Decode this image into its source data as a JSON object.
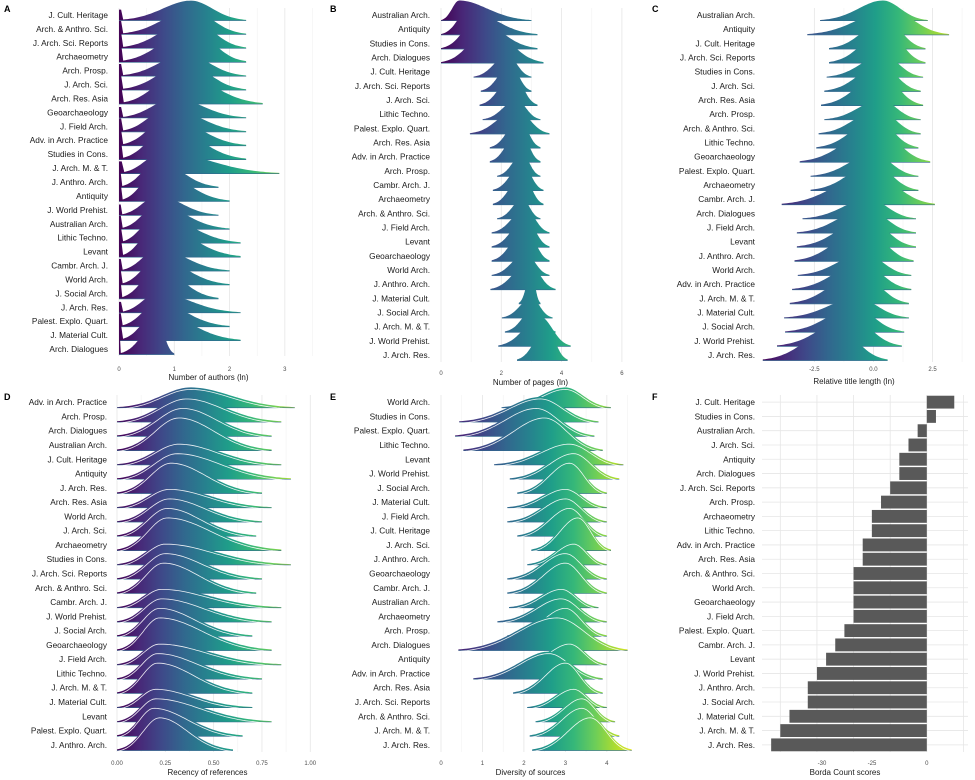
{
  "colors": {
    "viridis": [
      "#440154",
      "#482878",
      "#3e4989",
      "#31688e",
      "#26828e",
      "#1f9e89",
      "#35b779",
      "#6ece58",
      "#b5de2b",
      "#fde725"
    ],
    "bar": "#595959",
    "grid": "#e6e6e6",
    "median_line": "#ffffff"
  },
  "chart_data": [
    {
      "panel": "A",
      "type": "ridgeline",
      "xlabel": "Number of authors (ln)",
      "xticks": [
        "0",
        "1",
        "2",
        "3"
      ],
      "xlim": [
        0,
        3.6
      ],
      "categories": [
        "J. Cult. Heritage",
        "Arch. & Anthro. Sci.",
        "J. Arch. Sci. Reports",
        "Archaeometry",
        "Arch. Prosp.",
        "J. Arch. Sci.",
        "Arch. Res. Asia",
        "Geoarchaeology",
        "J. Field Arch.",
        "Adv. in Arch. Practice",
        "Studies in Cons.",
        "J. Arch. M. & T.",
        "J. Anthro. Arch.",
        "Antiquity",
        "J. World Prehist.",
        "Australian Arch.",
        "Lithic Techno.",
        "Levant",
        "Cambr. Arch. J.",
        "World Arch.",
        "J. Social Arch.",
        "J. Arch. Res.",
        "Palest. Explo. Quart.",
        "J. Material Cult.",
        "Arch. Dialogues"
      ],
      "peak": [
        1.3,
        1.3,
        1.3,
        1.3,
        1.2,
        1.2,
        1.1,
        1.0,
        0.9,
        0.9,
        0.9,
        0.8,
        0.7,
        0.7,
        0.7,
        0.7,
        0.7,
        0.7,
        0.7,
        0.7,
        0.7,
        0.7,
        0.7,
        0.7,
        0.7
      ],
      "xmax": [
        2.3,
        2.3,
        2.3,
        2.3,
        2.3,
        2.3,
        2.6,
        2.3,
        2.3,
        2.3,
        2.3,
        2.9,
        1.8,
        2.0,
        1.8,
        2.0,
        2.2,
        2.2,
        2.0,
        2.0,
        1.8,
        2.2,
        2.0,
        2.2,
        1.0
      ],
      "zero_spike": true
    },
    {
      "panel": "B",
      "type": "ridgeline",
      "xlabel": "Number of pages (ln)",
      "xticks": [
        "0",
        "2",
        "4",
        "6"
      ],
      "xlim": [
        0,
        6.6
      ],
      "categories": [
        "Australian Arch.",
        "Antiquity",
        "Studies in Cons.",
        "Arch. Dialogues",
        "J. Cult. Heritage",
        "J. Arch. Sci. Reports",
        "J. Arch. Sci.",
        "Lithic Techno.",
        "Palest. Explo. Quart.",
        "Arch. Res. Asia",
        "Adv. in Arch. Practice",
        "Arch. Prosp.",
        "Cambr. Arch. J.",
        "Archaeometry",
        "Arch. & Anthro. Sci.",
        "J. Field Arch.",
        "Levant",
        "Geoarchaeology",
        "World Arch.",
        "J. Anthro. Arch.",
        "J. Material Cult.",
        "J. Social Arch.",
        "J. Arch. M. & T.",
        "J. World Prehist.",
        "J. Arch. Res."
      ],
      "peak": [
        0.6,
        0.9,
        1.2,
        1.6,
        2.2,
        2.3,
        2.4,
        2.5,
        2.5,
        2.6,
        2.6,
        2.7,
        2.7,
        2.7,
        2.7,
        2.8,
        2.8,
        2.8,
        2.8,
        2.9,
        3.0,
        3.0,
        3.1,
        3.3,
        3.5
      ],
      "xmax": [
        3.0,
        3.2,
        3.2,
        3.4,
        3.0,
        3.0,
        3.2,
        3.3,
        3.6,
        3.3,
        3.3,
        3.3,
        3.4,
        3.4,
        3.3,
        3.6,
        3.6,
        3.6,
        3.6,
        3.8,
        3.3,
        3.7,
        3.8,
        4.3,
        4.2
      ],
      "zero_spike": false
    },
    {
      "panel": "C",
      "type": "ridgeline",
      "xlabel": "Relative title length (ln)",
      "xticks": [
        "-2.5",
        "0.0",
        "2.5"
      ],
      "xlim": [
        -4.8,
        4.0
      ],
      "categories": [
        "Australian Arch.",
        "Antiquity",
        "J. Cult. Heritage",
        "J. Arch. Sci. Reports",
        "Studies in Cons.",
        "J. Arch. Sci.",
        "Arch. Res. Asia",
        "Arch. Prosp.",
        "Arch. & Anthro. Sci.",
        "Lithic Techno.",
        "Geoarchaeology",
        "Palest. Explo. Quart.",
        "Archaeometry",
        "Cambr. Arch. J.",
        "Arch. Dialogues",
        "J. Field Arch.",
        "Levant",
        "J. Anthro. Arch.",
        "World Arch.",
        "Adv. in Arch. Practice",
        "J. Arch. M. & T.",
        "J. Material Cult.",
        "J. Social Arch.",
        "J. World Prehist.",
        "J. Arch. Res."
      ],
      "peak": [
        0.4,
        0.7,
        0.5,
        0.5,
        0.4,
        0.3,
        0.3,
        0.3,
        0.2,
        0.1,
        0.1,
        0.0,
        0.0,
        -0.1,
        -0.2,
        -0.3,
        -0.3,
        -0.4,
        -0.4,
        -0.5,
        -0.6,
        -0.7,
        -0.8,
        -1.0,
        -1.6
      ],
      "xmax": [
        2.3,
        3.2,
        2.2,
        2.2,
        2.1,
        2.0,
        2.1,
        2.0,
        2.0,
        1.9,
        2.4,
        1.9,
        1.9,
        2.6,
        1.8,
        1.8,
        1.8,
        1.7,
        1.6,
        1.6,
        1.5,
        1.5,
        1.3,
        1.2,
        0.6
      ],
      "zero_spike": false
    },
    {
      "panel": "D",
      "type": "ridgeline",
      "xlabel": "Recency of references",
      "xticks": [
        "0.00",
        "0.25",
        "0.50",
        "0.75",
        "1.00"
      ],
      "xlim": [
        0,
        1.04
      ],
      "categories": [
        "Adv. in Arch. Practice",
        "Arch. Prosp.",
        "Arch. Dialogues",
        "Australian Arch.",
        "J. Cult. Heritage",
        "Antiquity",
        "J. Arch. Res.",
        "Arch. Res. Asia",
        "World Arch.",
        "J. Arch. Sci.",
        "Archaeometry",
        "Studies in Cons.",
        "J. Arch. Sci. Reports",
        "Arch. & Anthro. Sci.",
        "Cambr. Arch. J.",
        "J. World Prehist.",
        "J. Social Arch.",
        "Geoarchaeology",
        "J. Field Arch.",
        "Lithic Techno.",
        "J. Arch. M. & T.",
        "J. Material Cult.",
        "Levant",
        "Palest. Explo. Quart.",
        "J. Anthro. Arch."
      ],
      "peak": [
        0.38,
        0.36,
        0.34,
        0.32,
        0.32,
        0.31,
        0.28,
        0.27,
        0.27,
        0.26,
        0.26,
        0.25,
        0.25,
        0.24,
        0.23,
        0.23,
        0.22,
        0.22,
        0.22,
        0.21,
        0.21,
        0.2,
        0.2,
        0.19,
        0.22
      ],
      "xmax": [
        0.92,
        0.85,
        0.8,
        0.8,
        0.85,
        0.9,
        0.75,
        0.8,
        0.75,
        0.72,
        0.85,
        0.9,
        0.75,
        0.72,
        0.85,
        0.8,
        0.7,
        0.8,
        0.85,
        0.75,
        0.7,
        0.7,
        0.8,
        0.65,
        0.6
      ],
      "zero_spike": false
    },
    {
      "panel": "E",
      "type": "ridgeline",
      "xlabel": "Diversity of sources",
      "xticks": [
        "0",
        "1",
        "2",
        "3",
        "4"
      ],
      "xlim": [
        0,
        4.8
      ],
      "categories": [
        "World Arch.",
        "Studies in Cons.",
        "Palest. Explo. Quart.",
        "Lithic Techno.",
        "Levant",
        "J. World Prehist.",
        "J. Social Arch.",
        "J. Material Cult.",
        "J. Field Arch.",
        "J. Cult. Heritage",
        "J. Arch. Sci.",
        "J. Anthro. Arch.",
        "Geoarchaeology",
        "Cambr. Arch. J.",
        "Australian Arch.",
        "Archaeometry",
        "Arch. Prosp.",
        "Arch. Dialogues",
        "Antiquity",
        "Adv. in Arch. Practice",
        "Arch. Res. Asia",
        "J. Arch. Sci. Reports",
        "Arch. & Anthro. Sci.",
        "J. Arch. M. & T.",
        "J. Arch. Res."
      ],
      "peak": [
        3.0,
        2.4,
        2.3,
        2.5,
        3.1,
        3.2,
        3.1,
        3.0,
        3.0,
        3.1,
        3.3,
        3.2,
        3.0,
        3.0,
        2.9,
        2.9,
        3.0,
        2.8,
        3.1,
        2.6,
        3.0,
        3.2,
        3.4,
        3.4,
        3.6
      ],
      "xmax": [
        4.1,
        3.8,
        3.7,
        3.9,
        4.4,
        4.3,
        4.0,
        4.0,
        4.0,
        4.0,
        4.1,
        4.0,
        4.0,
        4.0,
        3.8,
        4.0,
        4.0,
        4.5,
        4.0,
        3.9,
        3.9,
        4.0,
        4.2,
        4.3,
        4.6
      ],
      "zero_spike": false
    },
    {
      "panel": "F",
      "type": "bar",
      "xlabel": "Borda Count scores",
      "xticks": [
        "-30",
        "-25",
        "0"
      ],
      "categories": [
        "J. Cult. Heritage",
        "Studies in Cons.",
        "Australian Arch.",
        "J. Arch. Sci.",
        "Antiquity",
        "Arch. Dialogues",
        "J. Arch. Sci. Reports",
        "Arch. Prosp.",
        "Archaeometry",
        "Lithic Techno.",
        "Adv. in Arch. Practice",
        "Arch. Res. Asia",
        "Arch. & Anthro. Sci.",
        "World Arch.",
        "Geoarchaeology",
        "J. Field Arch.",
        "Palest. Explo. Quart.",
        "Cambr. Arch. J.",
        "Levant",
        "J. World Prehist.",
        "J. Anthro. Arch.",
        "J. Social Arch.",
        "J. Material Cult.",
        "J. Arch. M. & T.",
        "J. Arch. Res."
      ],
      "values": [
        3,
        1,
        -1,
        -2,
        -3,
        -3,
        -4,
        -5,
        -6,
        -6,
        -7,
        -7,
        -8,
        -8,
        -8,
        -8,
        -9,
        -10,
        -11,
        -12,
        -13,
        -13,
        -15,
        -16,
        -17
      ]
    }
  ]
}
